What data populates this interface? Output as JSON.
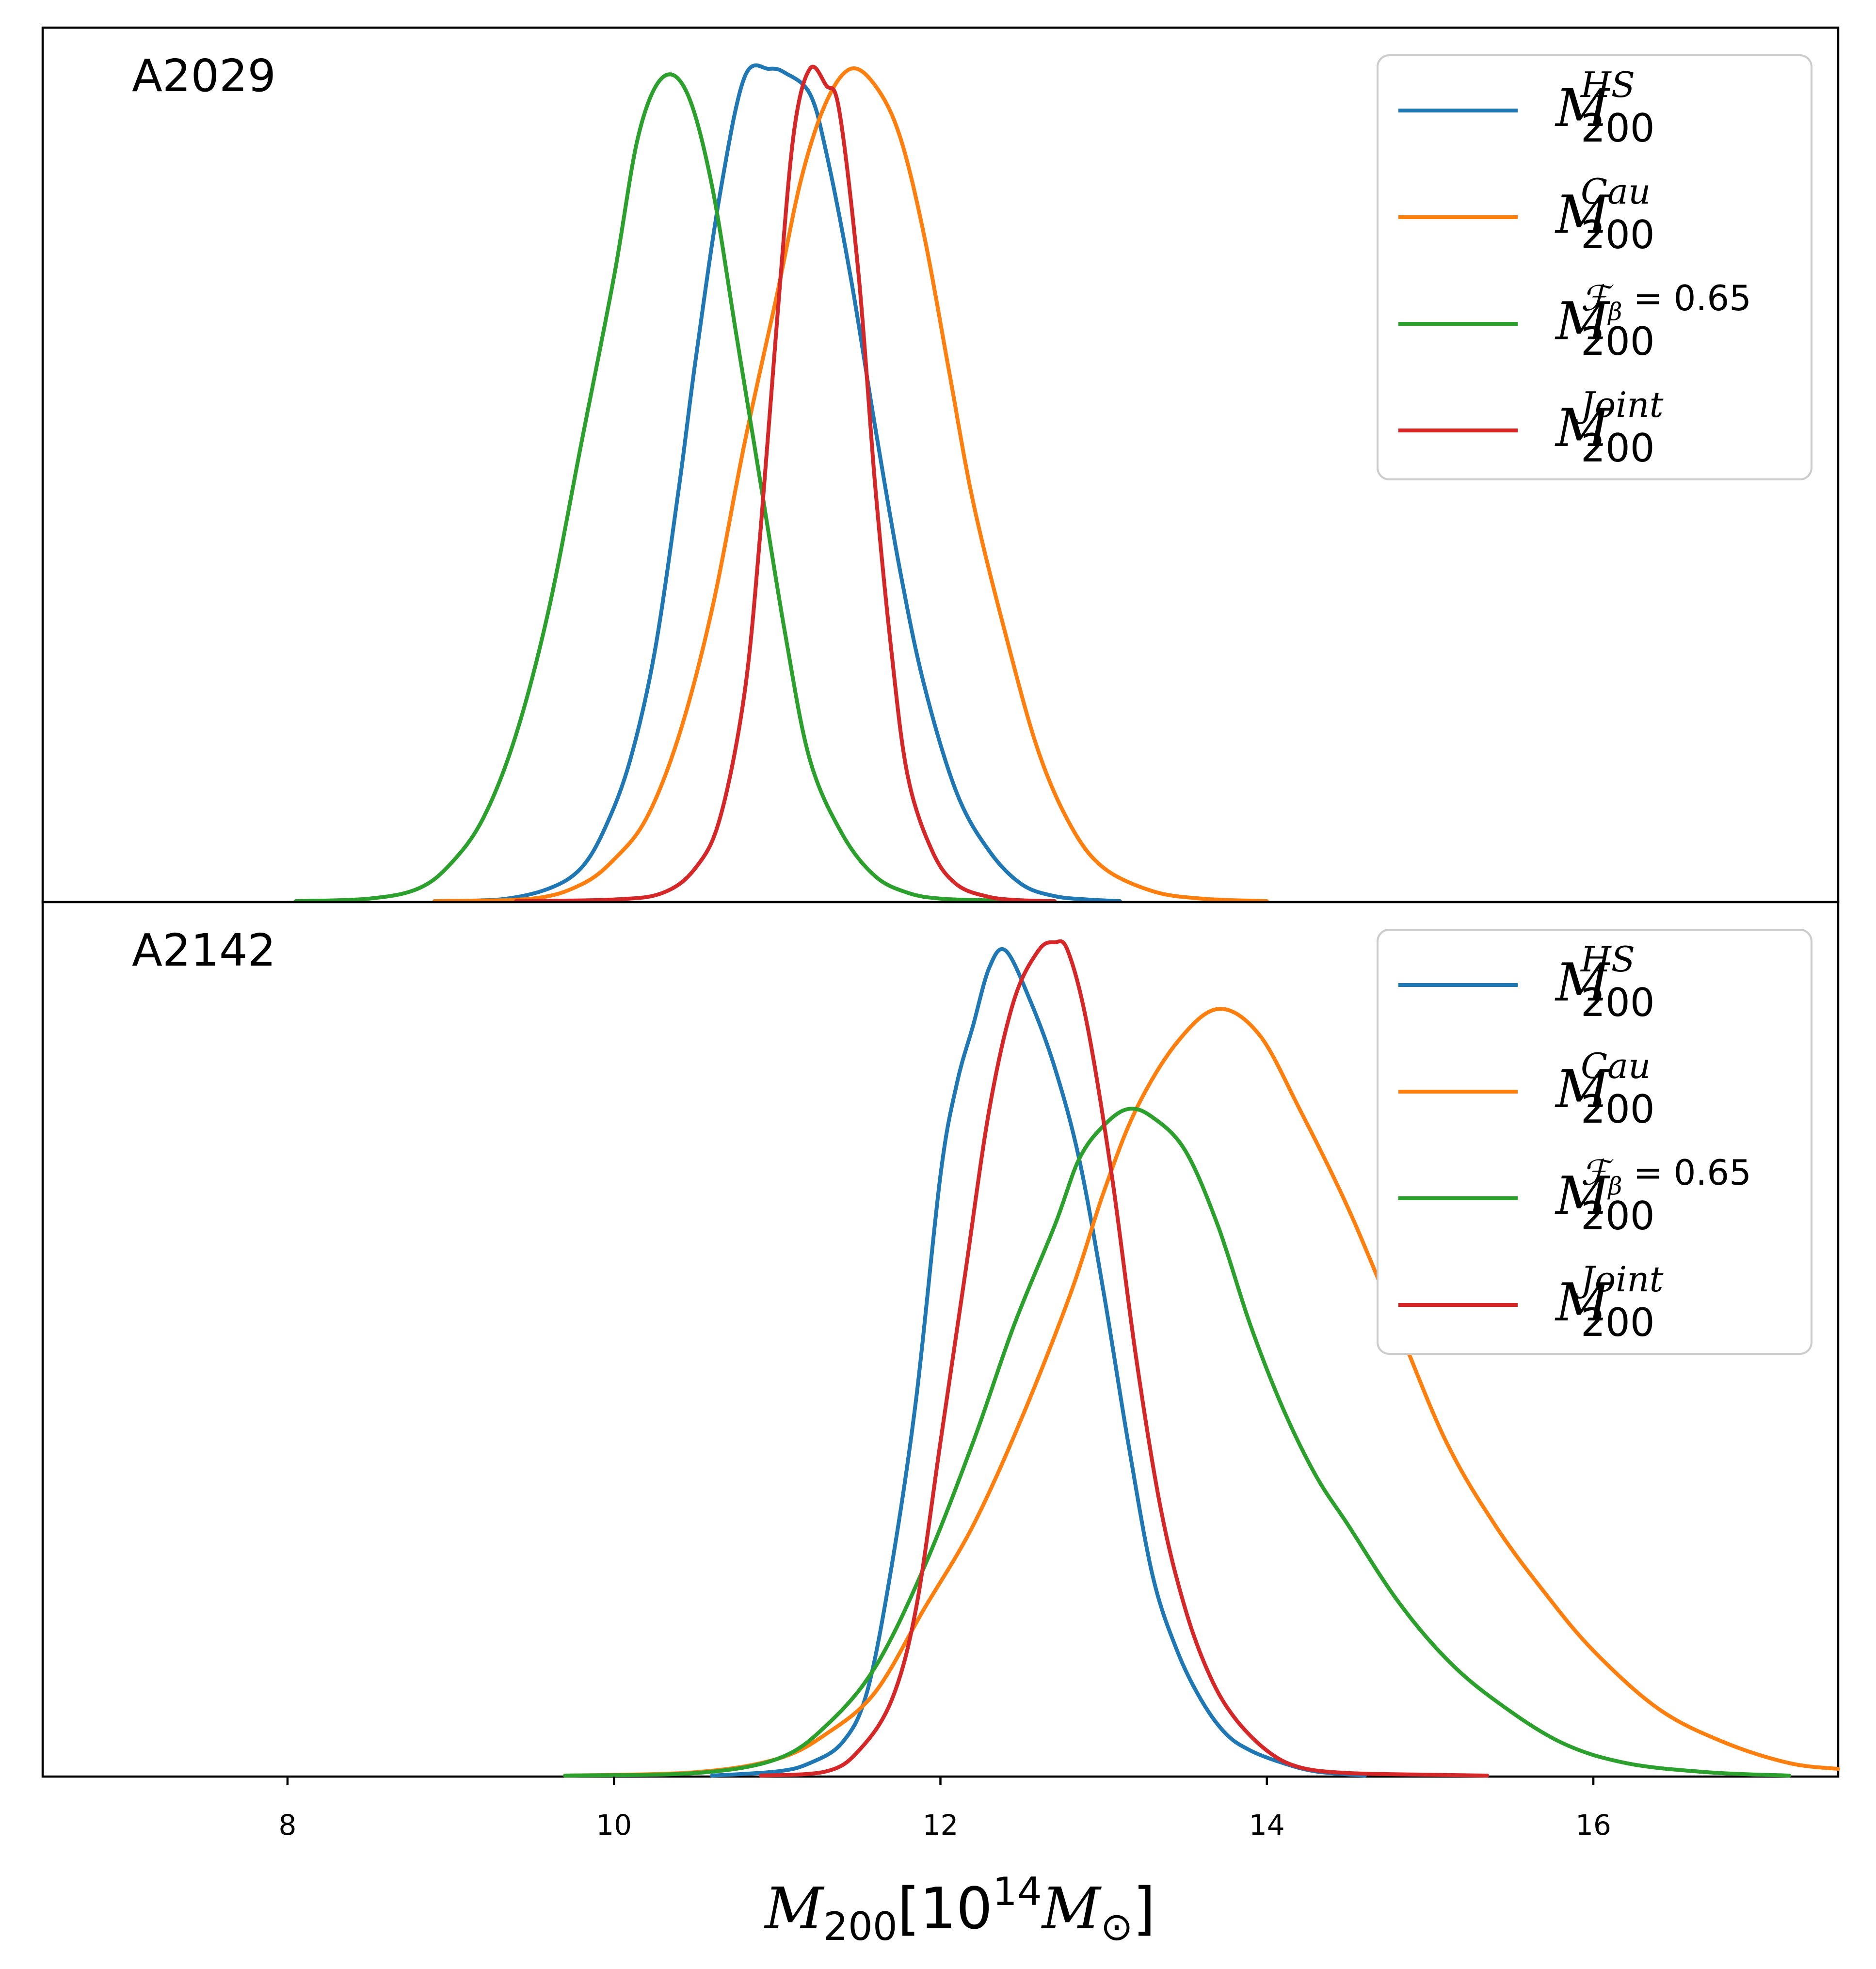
{
  "chart_data": [
    {
      "type": "line",
      "panel_label": "A2029",
      "xlim": [
        6.5,
        17.5
      ],
      "yticks_visible": false,
      "series": [
        {
          "name": "M_200^HS",
          "color": "#1f77b4",
          "x": [
            8.9,
            9.3,
            9.6,
            9.8,
            9.95,
            10.1,
            10.25,
            10.4,
            10.5,
            10.65,
            10.8,
            10.95,
            11.05,
            11.2,
            11.3,
            11.45,
            11.6,
            11.75,
            11.9,
            12.1,
            12.3,
            12.5,
            12.7,
            12.9,
            13.1
          ],
          "y": [
            0,
            0.002,
            0.015,
            0.04,
            0.09,
            0.17,
            0.3,
            0.5,
            0.65,
            0.85,
            0.99,
            1.0,
            0.995,
            0.97,
            0.9,
            0.75,
            0.57,
            0.4,
            0.26,
            0.13,
            0.06,
            0.02,
            0.006,
            0.002,
            0
          ]
        },
        {
          "name": "M_200^Cau",
          "color": "#ff7f0e",
          "x": [
            8.9,
            9.5,
            9.8,
            10.0,
            10.2,
            10.4,
            10.6,
            10.8,
            11.0,
            11.15,
            11.3,
            11.45,
            11.6,
            11.75,
            11.9,
            12.05,
            12.2,
            12.4,
            12.6,
            12.8,
            13.0,
            13.3,
            13.6,
            14.0
          ],
          "y": [
            0,
            0.003,
            0.02,
            0.05,
            0.1,
            0.2,
            0.35,
            0.55,
            0.73,
            0.87,
            0.96,
            1.0,
            0.98,
            0.92,
            0.8,
            0.64,
            0.48,
            0.32,
            0.18,
            0.09,
            0.04,
            0.012,
            0.003,
            0
          ]
        },
        {
          "name": "M_200^{F_beta=0.65}",
          "color": "#2ca02c",
          "x": [
            8.05,
            8.5,
            8.8,
            9.0,
            9.2,
            9.4,
            9.6,
            9.8,
            10.0,
            10.15,
            10.3,
            10.45,
            10.6,
            10.75,
            10.9,
            11.05,
            11.2,
            11.4,
            11.6,
            11.8,
            12.0,
            12.3,
            12.6
          ],
          "y": [
            0,
            0.003,
            0.015,
            0.045,
            0.1,
            0.2,
            0.35,
            0.55,
            0.75,
            0.92,
            0.99,
            0.97,
            0.86,
            0.68,
            0.5,
            0.32,
            0.17,
            0.08,
            0.03,
            0.01,
            0.003,
            0.001,
            0
          ]
        },
        {
          "name": "M_200^Joint",
          "color": "#d62728",
          "x": [
            9.4,
            10.0,
            10.3,
            10.5,
            10.65,
            10.8,
            10.9,
            11.0,
            11.1,
            11.2,
            11.3,
            11.38,
            11.5,
            11.6,
            11.7,
            11.8,
            11.95,
            12.1,
            12.3,
            12.5,
            12.7
          ],
          "y": [
            0,
            0.002,
            0.01,
            0.04,
            0.1,
            0.25,
            0.45,
            0.7,
            0.92,
            1.0,
            0.98,
            0.95,
            0.75,
            0.5,
            0.3,
            0.15,
            0.06,
            0.02,
            0.005,
            0.001,
            0
          ]
        }
      ],
      "legend": {
        "placement": "top-right",
        "entries": [
          {
            "base": "M",
            "sup": "HS",
            "sub": "200",
            "color": "#1f77b4"
          },
          {
            "base": "M",
            "sup": "Cau",
            "sub": "200",
            "color": "#ff7f0e"
          },
          {
            "base": "M",
            "sup_italic": "ℱ",
            "sup_greek_sub": "β",
            "sup_rest": " = 0.65",
            "sub": "200",
            "color": "#2ca02c"
          },
          {
            "base": "M",
            "sup": "Joint",
            "sub": "200",
            "color": "#d62728"
          }
        ]
      }
    },
    {
      "type": "line",
      "panel_label": "A2142",
      "xlim": [
        6.5,
        17.5
      ],
      "xticks": [
        8,
        10,
        12,
        14,
        16
      ],
      "xlabel": {
        "base": "M",
        "sub": "200",
        "bracket_open": "[10",
        "exp": "14",
        "unit_base": "M",
        "unit_sub": "⊙",
        "bracket_close": "]"
      },
      "yticks_visible": false,
      "series": [
        {
          "name": "M_200^HS",
          "color": "#1f77b4",
          "x": [
            10.6,
            11.0,
            11.2,
            11.4,
            11.55,
            11.7,
            11.85,
            12.0,
            12.1,
            12.2,
            12.3,
            12.4,
            12.55,
            12.7,
            12.85,
            13.0,
            13.15,
            13.3,
            13.45,
            13.6,
            13.75,
            13.9,
            14.1,
            14.3,
            14.6
          ],
          "y": [
            0,
            0.005,
            0.015,
            0.04,
            0.1,
            0.25,
            0.45,
            0.72,
            0.83,
            0.9,
            0.97,
            0.99,
            0.93,
            0.85,
            0.74,
            0.58,
            0.4,
            0.24,
            0.15,
            0.09,
            0.05,
            0.03,
            0.015,
            0.005,
            0
          ]
        },
        {
          "name": "M_200^Cau",
          "color": "#ff7f0e",
          "x": [
            9.7,
            10.5,
            11.0,
            11.3,
            11.6,
            11.9,
            12.2,
            12.5,
            12.8,
            13.0,
            13.2,
            13.45,
            13.7,
            13.95,
            14.2,
            14.5,
            14.8,
            15.1,
            15.4,
            15.7,
            16.0,
            16.4,
            16.8,
            17.2,
            17.5
          ],
          "y": [
            0,
            0.004,
            0.02,
            0.05,
            0.1,
            0.2,
            0.3,
            0.43,
            0.58,
            0.7,
            0.8,
            0.88,
            0.92,
            0.89,
            0.8,
            0.68,
            0.54,
            0.4,
            0.3,
            0.22,
            0.15,
            0.08,
            0.04,
            0.015,
            0.008
          ]
        },
        {
          "name": "M_200^{F_beta=0.65}",
          "color": "#2ca02c",
          "x": [
            9.7,
            10.5,
            11.0,
            11.3,
            11.6,
            11.9,
            12.2,
            12.45,
            12.7,
            12.85,
            13.0,
            13.15,
            13.3,
            13.5,
            13.7,
            13.9,
            14.1,
            14.3,
            14.5,
            14.8,
            15.1,
            15.4,
            15.8,
            16.2,
            16.7,
            17.2
          ],
          "y": [
            0,
            0.003,
            0.02,
            0.06,
            0.13,
            0.25,
            0.4,
            0.54,
            0.66,
            0.74,
            0.78,
            0.8,
            0.79,
            0.75,
            0.66,
            0.54,
            0.44,
            0.36,
            0.3,
            0.21,
            0.14,
            0.09,
            0.04,
            0.015,
            0.004,
            0
          ]
        },
        {
          "name": "M_200^Joint",
          "color": "#d62728",
          "x": [
            10.9,
            11.3,
            11.5,
            11.7,
            11.85,
            12.0,
            12.15,
            12.3,
            12.45,
            12.6,
            12.7,
            12.78,
            12.9,
            13.05,
            13.2,
            13.35,
            13.5,
            13.65,
            13.8,
            14.0,
            14.2,
            14.5,
            15.0,
            15.35
          ],
          "y": [
            0,
            0.005,
            0.03,
            0.09,
            0.2,
            0.4,
            0.6,
            0.8,
            0.93,
            0.99,
            1.0,
            0.99,
            0.9,
            0.72,
            0.5,
            0.32,
            0.2,
            0.12,
            0.07,
            0.03,
            0.01,
            0.003,
            0.001,
            0
          ]
        }
      ],
      "legend": {
        "placement": "top-right",
        "entries": [
          {
            "base": "M",
            "sup": "HS",
            "sub": "200",
            "color": "#1f77b4"
          },
          {
            "base": "M",
            "sup": "Cau",
            "sub": "200",
            "color": "#ff7f0e"
          },
          {
            "base": "M",
            "sup_italic": "ℱ",
            "sup_greek_sub": "β",
            "sup_rest": " = 0.65",
            "sub": "200",
            "color": "#2ca02c"
          },
          {
            "base": "M",
            "sup": "Joint",
            "sub": "200",
            "color": "#d62728"
          }
        ]
      }
    }
  ]
}
